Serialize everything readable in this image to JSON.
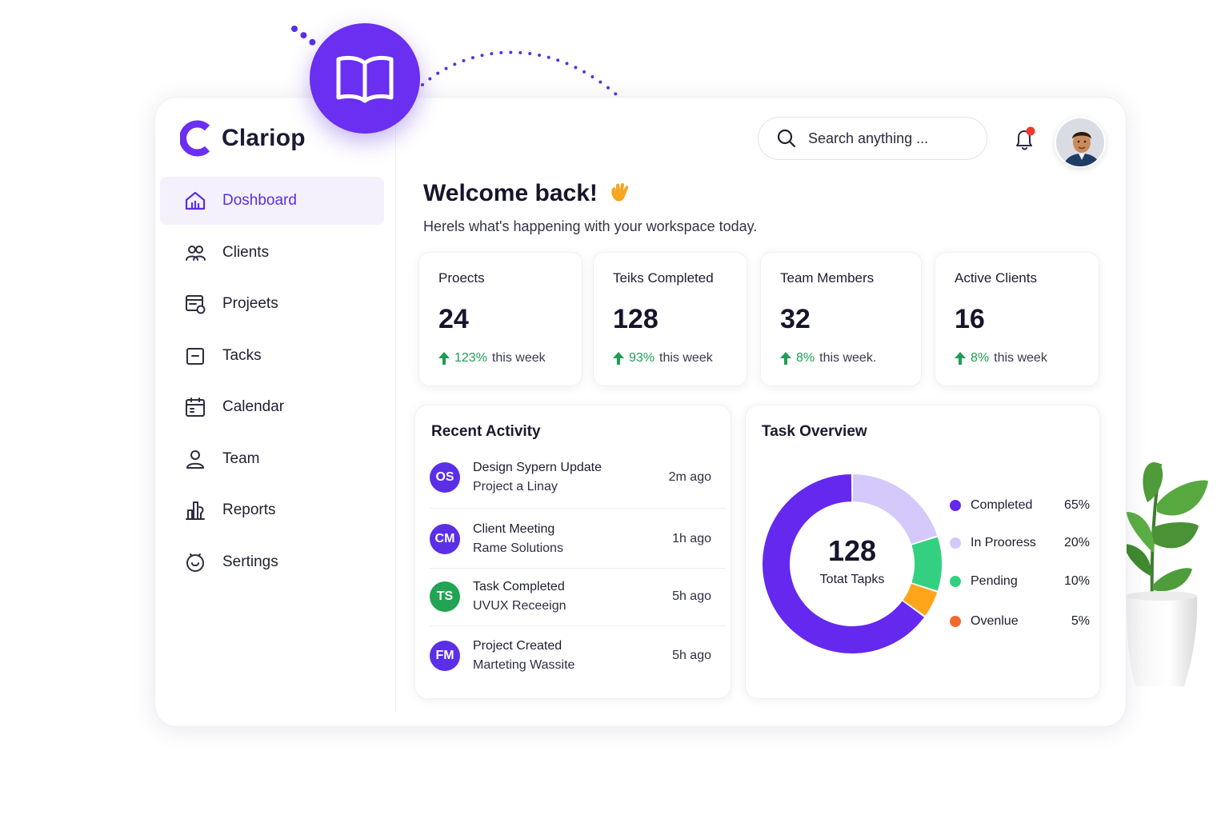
{
  "brand": {
    "name": "Clariop"
  },
  "nav": [
    {
      "label": "Doshboard",
      "icon": "home-icon",
      "active": true
    },
    {
      "label": "Clients",
      "icon": "users-icon",
      "active": false
    },
    {
      "label": "Projeets",
      "icon": "projects-icon",
      "active": false
    },
    {
      "label": "Tacks",
      "icon": "tasks-icon",
      "active": false
    },
    {
      "label": "Calendar",
      "icon": "calendar-icon",
      "active": false
    },
    {
      "label": "Team",
      "icon": "person-icon",
      "active": false
    },
    {
      "label": "Reports",
      "icon": "reports-icon",
      "active": false
    },
    {
      "label": "Sertings",
      "icon": "settings-icon",
      "active": false
    }
  ],
  "search": {
    "placeholder": "Search anything ..."
  },
  "welcome": {
    "title": "Welcome back!",
    "subtitle": "Herels what's happening with your workspace today."
  },
  "stats": [
    {
      "label": "Proects",
      "value": "24",
      "pct": "123%",
      "suffix": "this week"
    },
    {
      "label": "Teiks Completed",
      "value": "128",
      "pct": "93%",
      "suffix": "this week"
    },
    {
      "label": "Team Members",
      "value": "32",
      "pct": "8%",
      "suffix": "this week."
    },
    {
      "label": "Active Clients",
      "value": "16",
      "pct": "8%",
      "suffix": "this week"
    }
  ],
  "activity": {
    "title": "Recent Activity",
    "items": [
      {
        "initials": "OS",
        "title": "Design Sypern Update",
        "subtitle": "Project  a Linay",
        "time": "2m ago",
        "color": "#5b2ee8"
      },
      {
        "initials": "CM",
        "title": "Client Meeting",
        "subtitle": "Rame Solutions",
        "time": "1h ago",
        "color": "#5b2ee8"
      },
      {
        "initials": "TS",
        "title": "Task Completed",
        "subtitle": "UVUX Receeign",
        "time": "5h ago",
        "color": "#22a455"
      },
      {
        "initials": "FM",
        "title": "Project Created",
        "subtitle": "Marteting Wassite",
        "time": "5h ago",
        "color": "#5b2ee8"
      }
    ]
  },
  "overview": {
    "title": "Task Overview",
    "total": "128",
    "total_label": "Totat Tapks"
  },
  "chart_data": {
    "type": "pie",
    "categories": [
      "Completed",
      "In Prooress",
      "Pending",
      "Ovenlue"
    ],
    "values": [
      65,
      20,
      10,
      5
    ],
    "value_labels": [
      "65%",
      "20%",
      "10%",
      "5%"
    ],
    "colors": [
      "#6528ef",
      "#d4c9fa",
      "#33d17f",
      "#ffa51a"
    ],
    "legend_dot_colors": [
      "#6528ef",
      "#d4c9fa",
      "#33d17f",
      "#f26a2c"
    ],
    "legend": "right"
  },
  "colors": {
    "accent": "#6a2ff0",
    "trend_up": "#1f9d55",
    "active_nav_bg": "#f4f1fd"
  }
}
